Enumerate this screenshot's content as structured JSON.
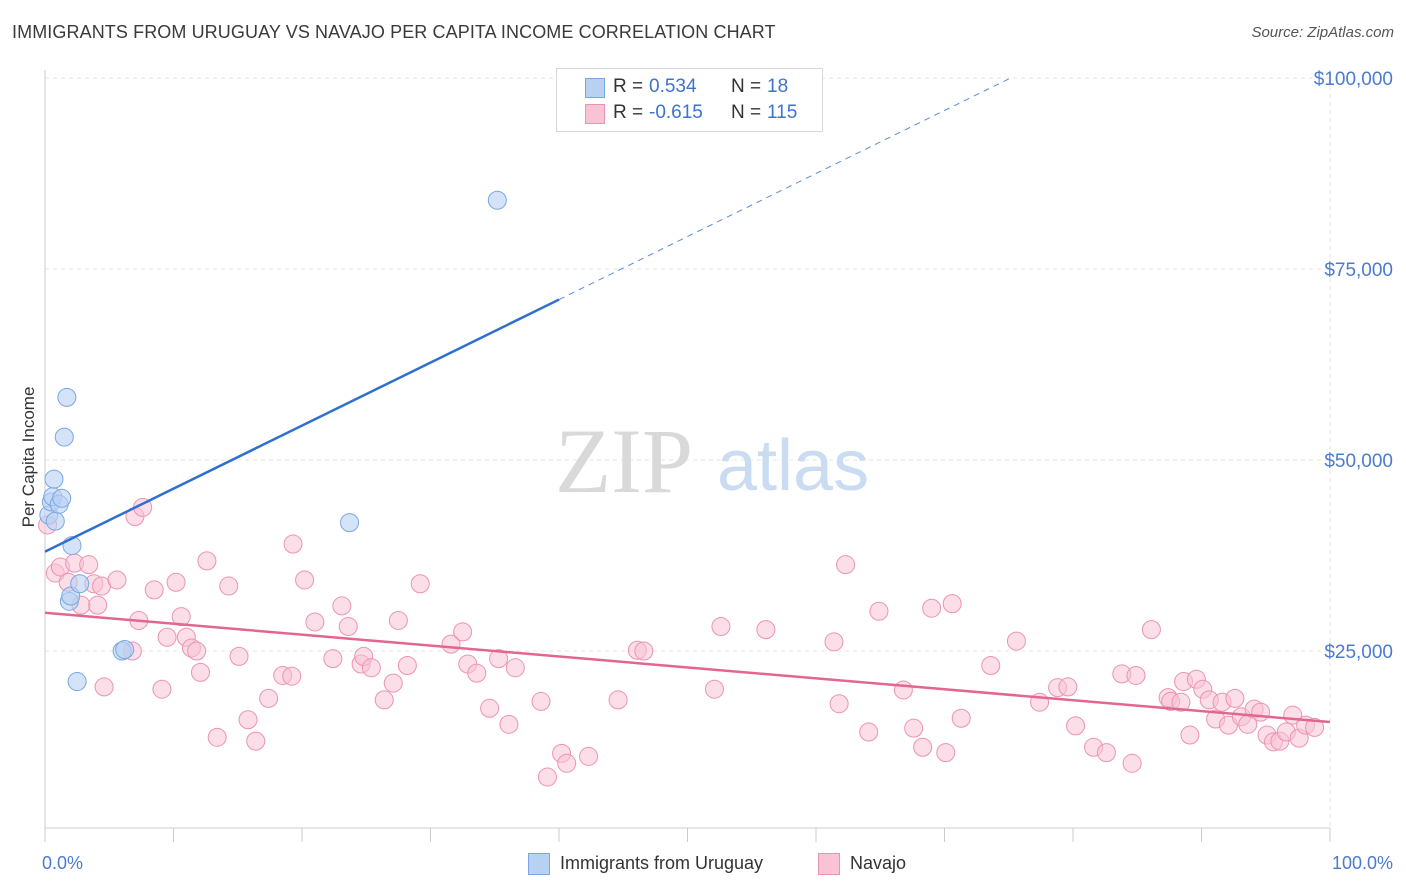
{
  "title": "IMMIGRANTS FROM URUGUAY VS NAVAJO PER CAPITA INCOME CORRELATION CHART",
  "source": "Source: ZipAtlas.com",
  "watermark": {
    "zip": "ZIP",
    "atlas": "atlas"
  },
  "legend": {
    "rows": [
      {
        "r_label": "R =",
        "r_value": "0.534",
        "n_label": "N =",
        "n_value": "18"
      },
      {
        "r_label": "R =",
        "r_value": "-0.615",
        "n_label": "N =",
        "n_value": "115"
      }
    ]
  },
  "bottom_legend": [
    "Immigrants from Uruguay",
    "Navajo"
  ],
  "colors": {
    "blue_fill": "#b7d1f3",
    "blue_stroke": "#7aa7e0",
    "blue_line": "#2f6fd0",
    "pink_fill": "#f7c3d5",
    "pink_stroke": "#ec93b2",
    "pink_line": "#e36690",
    "grid": "#e6e6e6",
    "tick_text": "#4a7bd0"
  },
  "chart_data": {
    "type": "scatter",
    "title": "IMMIGRANTS FROM URUGUAY VS NAVAJO PER CAPITA INCOME CORRELATION CHART",
    "xlabel": "",
    "ylabel": "Per Capita Income",
    "xlim": [
      0,
      100
    ],
    "ylim": [
      0,
      105000
    ],
    "x_tick_labels": [
      "0.0%",
      "100.0%"
    ],
    "y_ticks": [
      {
        "value": 25000,
        "label": "$25,000"
      },
      {
        "value": 50000,
        "label": "$50,000"
      },
      {
        "value": 75000,
        "label": "$75,000"
      },
      {
        "value": 100000,
        "label": "$100,000"
      }
    ],
    "grid": true,
    "legend_position": "top-center",
    "series": [
      {
        "name": "Immigrants from Uruguay",
        "R": 0.534,
        "N": 18,
        "trend": {
          "x0": 0,
          "y0": 38000,
          "x1": 40,
          "y1": 71000,
          "dashed_to_x": 75
        },
        "points": [
          [
            0.3,
            42800
          ],
          [
            0.5,
            44500
          ],
          [
            0.6,
            45200
          ],
          [
            0.7,
            47500
          ],
          [
            0.8,
            42000
          ],
          [
            1.1,
            44200
          ],
          [
            1.3,
            45000
          ],
          [
            1.5,
            53000
          ],
          [
            1.7,
            58200
          ],
          [
            1.9,
            31500
          ],
          [
            2.0,
            32200
          ],
          [
            2.1,
            38800
          ],
          [
            2.5,
            21000
          ],
          [
            2.7,
            33800
          ],
          [
            6.0,
            25000
          ],
          [
            6.2,
            25200
          ],
          [
            23.7,
            41800
          ],
          [
            35.2,
            84000
          ]
        ]
      },
      {
        "name": "Navajo",
        "R": -0.615,
        "N": 115,
        "trend": {
          "x0": 0,
          "y0": 30000,
          "x1": 100,
          "y1": 15700
        },
        "points": [
          [
            0.2,
            41500
          ],
          [
            0.8,
            35200
          ],
          [
            1.2,
            36000
          ],
          [
            1.8,
            34000
          ],
          [
            2.3,
            36500
          ],
          [
            2.8,
            31000
          ],
          [
            3.4,
            36300
          ],
          [
            3.8,
            33800
          ],
          [
            4.1,
            31000
          ],
          [
            4.4,
            33500
          ],
          [
            4.6,
            20300
          ],
          [
            5.6,
            34300
          ],
          [
            6.8,
            25000
          ],
          [
            7.0,
            42600
          ],
          [
            7.3,
            29000
          ],
          [
            7.6,
            43800
          ],
          [
            8.5,
            33000
          ],
          [
            9.1,
            20000
          ],
          [
            9.5,
            26800
          ],
          [
            10.2,
            34000
          ],
          [
            10.6,
            29500
          ],
          [
            11.0,
            26800
          ],
          [
            11.4,
            25400
          ],
          [
            11.8,
            25000
          ],
          [
            12.1,
            22200
          ],
          [
            12.6,
            36800
          ],
          [
            13.4,
            13700
          ],
          [
            14.3,
            33500
          ],
          [
            15.1,
            24300
          ],
          [
            15.8,
            16000
          ],
          [
            16.4,
            13200
          ],
          [
            17.4,
            18800
          ],
          [
            18.5,
            21800
          ],
          [
            19.2,
            21700
          ],
          [
            19.3,
            39000
          ],
          [
            20.2,
            34300
          ],
          [
            21.0,
            28800
          ],
          [
            22.4,
            24000
          ],
          [
            23.1,
            30900
          ],
          [
            23.6,
            28200
          ],
          [
            24.6,
            23300
          ],
          [
            24.8,
            24300
          ],
          [
            25.4,
            22800
          ],
          [
            26.4,
            18600
          ],
          [
            27.1,
            20800
          ],
          [
            27.5,
            29000
          ],
          [
            28.2,
            23100
          ],
          [
            29.2,
            33800
          ],
          [
            31.6,
            25900
          ],
          [
            32.5,
            27500
          ],
          [
            32.9,
            23300
          ],
          [
            33.6,
            22100
          ],
          [
            34.6,
            17500
          ],
          [
            35.3,
            24000
          ],
          [
            36.1,
            15400
          ],
          [
            36.6,
            22800
          ],
          [
            38.6,
            18400
          ],
          [
            39.1,
            8500
          ],
          [
            40.2,
            11600
          ],
          [
            40.6,
            10300
          ],
          [
            42.3,
            11200
          ],
          [
            44.6,
            18600
          ],
          [
            46.1,
            25100
          ],
          [
            46.6,
            25000
          ],
          [
            52.1,
            20000
          ],
          [
            52.6,
            28200
          ],
          [
            56.1,
            27800
          ],
          [
            61.4,
            26200
          ],
          [
            61.8,
            18100
          ],
          [
            62.3,
            36300
          ],
          [
            64.1,
            14400
          ],
          [
            64.9,
            30200
          ],
          [
            66.8,
            19900
          ],
          [
            67.6,
            14900
          ],
          [
            68.3,
            12400
          ],
          [
            69.0,
            30600
          ],
          [
            70.1,
            11700
          ],
          [
            70.6,
            31200
          ],
          [
            71.3,
            16200
          ],
          [
            73.6,
            23100
          ],
          [
            75.6,
            26300
          ],
          [
            77.4,
            18300
          ],
          [
            78.8,
            20200
          ],
          [
            79.6,
            20300
          ],
          [
            80.2,
            15200
          ],
          [
            81.6,
            12400
          ],
          [
            82.6,
            11700
          ],
          [
            83.8,
            22000
          ],
          [
            84.6,
            10300
          ],
          [
            84.9,
            21800
          ],
          [
            86.1,
            27800
          ],
          [
            87.4,
            18900
          ],
          [
            87.6,
            18400
          ],
          [
            88.4,
            18300
          ],
          [
            88.6,
            21000
          ],
          [
            89.1,
            14000
          ],
          [
            89.6,
            21300
          ],
          [
            90.1,
            20000
          ],
          [
            90.6,
            18600
          ],
          [
            91.1,
            16100
          ],
          [
            91.6,
            18300
          ],
          [
            92.1,
            15300
          ],
          [
            92.6,
            18800
          ],
          [
            93.1,
            16400
          ],
          [
            93.6,
            15400
          ],
          [
            94.1,
            17400
          ],
          [
            94.6,
            17000
          ],
          [
            95.1,
            14000
          ],
          [
            95.6,
            13100
          ],
          [
            96.1,
            13200
          ],
          [
            96.6,
            14400
          ],
          [
            97.1,
            16600
          ],
          [
            97.6,
            13600
          ],
          [
            98.1,
            15300
          ],
          [
            98.8,
            15000
          ]
        ]
      }
    ]
  }
}
